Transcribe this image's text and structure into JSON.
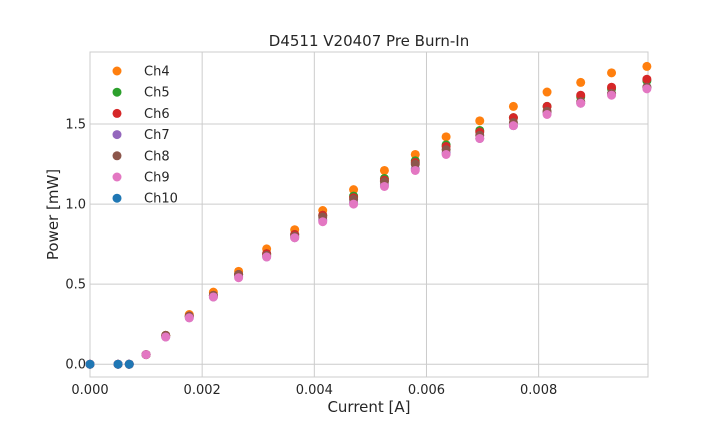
{
  "chart_data": {
    "type": "scatter",
    "title": "D4511 V20407 Pre Burn-In",
    "xlabel": "Current [A]",
    "ylabel": "Power [mW]",
    "xlim": [
      0,
      0.00995
    ],
    "ylim": [
      -0.08,
      1.95
    ],
    "xticks": [
      0,
      0.002,
      0.004,
      0.006,
      0.008
    ],
    "xtick_labels": [
      "0.000",
      "0.002",
      "0.004",
      "0.006",
      "0.008"
    ],
    "yticks": [
      0,
      0.5,
      1.0,
      1.5
    ],
    "ytick_labels": [
      "0.0",
      "0.5",
      "1.0",
      "1.5"
    ],
    "grid": true,
    "legend_position": "upper-left",
    "x": [
      0,
      0.0005,
      0.0007,
      0.001,
      0.00135,
      0.00177,
      0.0022,
      0.00265,
      0.00315,
      0.00365,
      0.00415,
      0.0047,
      0.00525,
      0.0058,
      0.00635,
      0.00695,
      0.00755,
      0.00815,
      0.00875,
      0.0093,
      0.00993
    ],
    "series": [
      {
        "name": "Ch4",
        "color": "#ff7f0e",
        "values": [
          0,
          0,
          0,
          0.06,
          0.18,
          0.31,
          0.45,
          0.58,
          0.72,
          0.84,
          0.96,
          1.09,
          1.21,
          1.31,
          1.42,
          1.52,
          1.61,
          1.7,
          1.76,
          1.82,
          1.86
        ]
      },
      {
        "name": "Ch5",
        "color": "#2ca02c",
        "values": [
          0,
          0,
          0,
          0.06,
          0.18,
          0.3,
          0.43,
          0.56,
          0.69,
          0.81,
          0.93,
          1.05,
          1.16,
          1.27,
          1.37,
          1.46,
          1.54,
          1.61,
          1.67,
          1.72,
          1.77
        ]
      },
      {
        "name": "Ch6",
        "color": "#d62728",
        "values": [
          0,
          0,
          0,
          0.06,
          0.18,
          0.3,
          0.43,
          0.56,
          0.69,
          0.81,
          0.93,
          1.04,
          1.15,
          1.26,
          1.36,
          1.45,
          1.54,
          1.61,
          1.68,
          1.73,
          1.78
        ]
      },
      {
        "name": "Ch7",
        "color": "#9467bd",
        "values": [
          0,
          0,
          0,
          0.06,
          0.17,
          0.29,
          0.42,
          0.55,
          0.67,
          0.79,
          0.9,
          1.01,
          1.12,
          1.22,
          1.32,
          1.41,
          1.49,
          1.57,
          1.63,
          1.69,
          1.73
        ]
      },
      {
        "name": "Ch8",
        "color": "#8c564b",
        "values": [
          0,
          0,
          0,
          0.06,
          0.18,
          0.3,
          0.43,
          0.56,
          0.68,
          0.8,
          0.92,
          1.03,
          1.14,
          1.25,
          1.34,
          1.43,
          1.51,
          1.58,
          1.64,
          1.69,
          1.73
        ]
      },
      {
        "name": "Ch9",
        "color": "#e377c2",
        "values": [
          0,
          0,
          0,
          0.06,
          0.17,
          0.29,
          0.42,
          0.54,
          0.67,
          0.79,
          0.89,
          1.0,
          1.11,
          1.21,
          1.31,
          1.41,
          1.49,
          1.56,
          1.63,
          1.68,
          1.72
        ]
      },
      {
        "name": "Ch10",
        "color": "#1f77b4",
        "values": [
          0,
          0,
          0,
          null,
          null,
          null,
          null,
          null,
          null,
          null,
          null,
          null,
          null,
          null,
          null,
          null,
          null,
          null,
          null,
          null,
          null
        ]
      }
    ]
  }
}
